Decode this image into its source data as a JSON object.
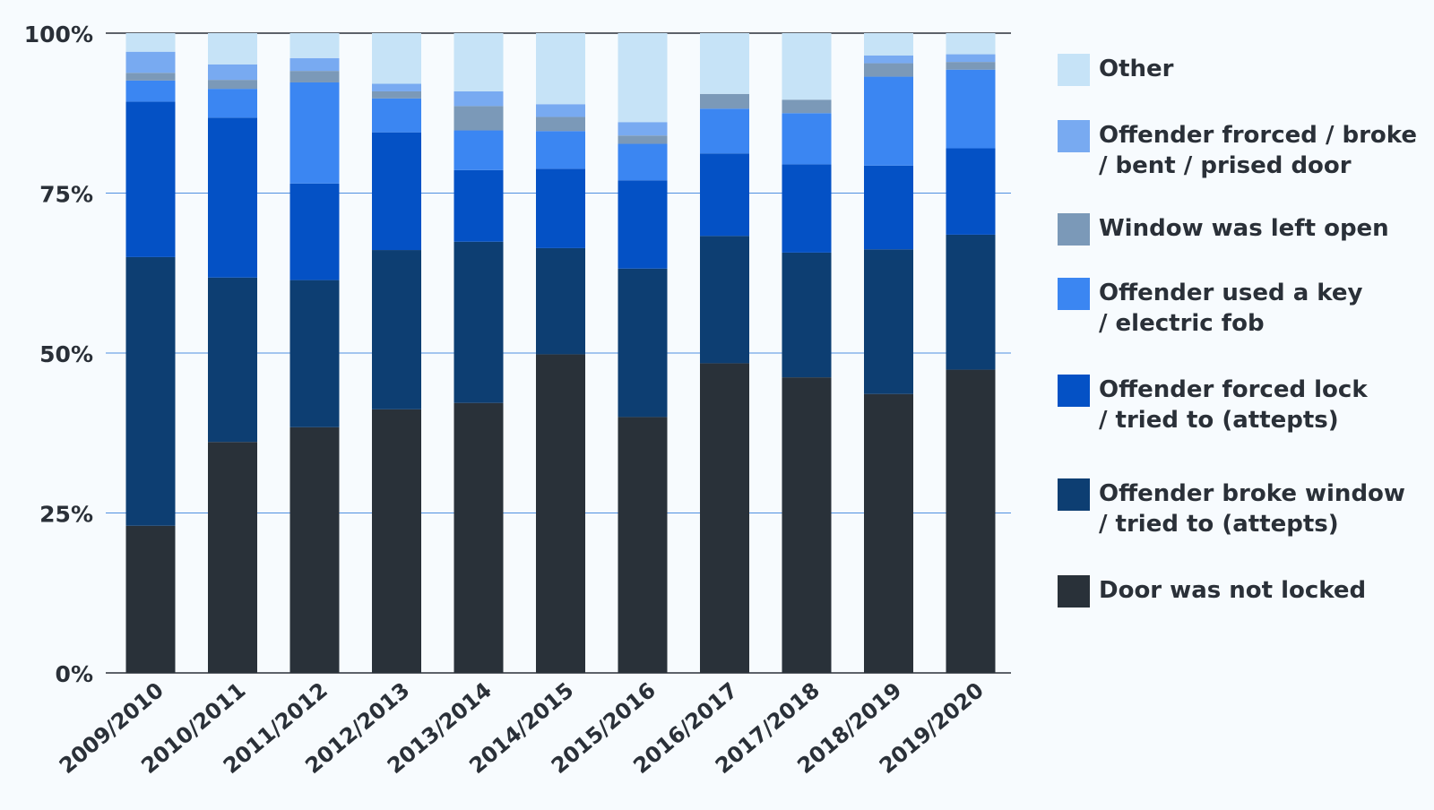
{
  "chart_data": {
    "type": "bar",
    "stacked": true,
    "categories": [
      "2009/2010",
      "2010/2011",
      "2011/2012",
      "2012/2013",
      "2013/2014",
      "2014/2015",
      "2015/2016",
      "2016/2017",
      "2017/2018",
      "2018/2019",
      "2019/2020"
    ],
    "ylim": [
      0,
      100
    ],
    "yticks": [
      "0%",
      "25%",
      "50%",
      "75%",
      "100%"
    ],
    "ytick_values": [
      0,
      25,
      50,
      75,
      100
    ],
    "grid": true,
    "legend_position": "right",
    "series": [
      {
        "name": "Door was not locked",
        "color": "#293139",
        "values": [
          23,
          36.1,
          38.4,
          41.2,
          42.2,
          49.8,
          40,
          48.4,
          46.2,
          43.6,
          47.4
        ]
      },
      {
        "name": "Offender broke window\n/ tried to (attepts)",
        "color": "#0d3e72",
        "values": [
          42,
          25.7,
          23,
          24.9,
          25.2,
          16.6,
          23.2,
          19.9,
          19.5,
          22.6,
          21.1
        ]
      },
      {
        "name": "Offender forced lock\n/ tried to (attepts)",
        "color": "#0451c5",
        "values": [
          24.3,
          25,
          15.1,
          18.4,
          11.2,
          12.4,
          13.8,
          12.9,
          13.8,
          13.1,
          13.5
        ]
      },
      {
        "name": "Offender used a key\n/ electric fob",
        "color": "#3b86f2",
        "values": [
          3.3,
          4.5,
          15.8,
          5.3,
          6.2,
          5.9,
          5.7,
          7,
          8,
          13.9,
          12.3
        ]
      },
      {
        "name": "Window was left open",
        "color": "#7b99b8",
        "values": [
          1.2,
          1.4,
          1.8,
          1.1,
          3.8,
          2.2,
          1.3,
          2.3,
          2.1,
          2.1,
          1.2
        ]
      },
      {
        "name": "Offender frorced / broke\n/ bent / prised door",
        "color": "#78aaf1",
        "values": [
          3.3,
          2.4,
          2,
          1.2,
          2.3,
          2,
          2.1,
          0,
          0,
          1.2,
          1.2
        ]
      },
      {
        "name": "Other",
        "color": "#c6e3f7",
        "values": [
          2.9,
          4.9,
          3.9,
          7.9,
          9.1,
          11.1,
          13.9,
          9.5,
          10.4,
          3.5,
          3.3
        ]
      }
    ]
  },
  "legend_order": [
    6,
    5,
    4,
    3,
    2,
    1,
    0
  ]
}
